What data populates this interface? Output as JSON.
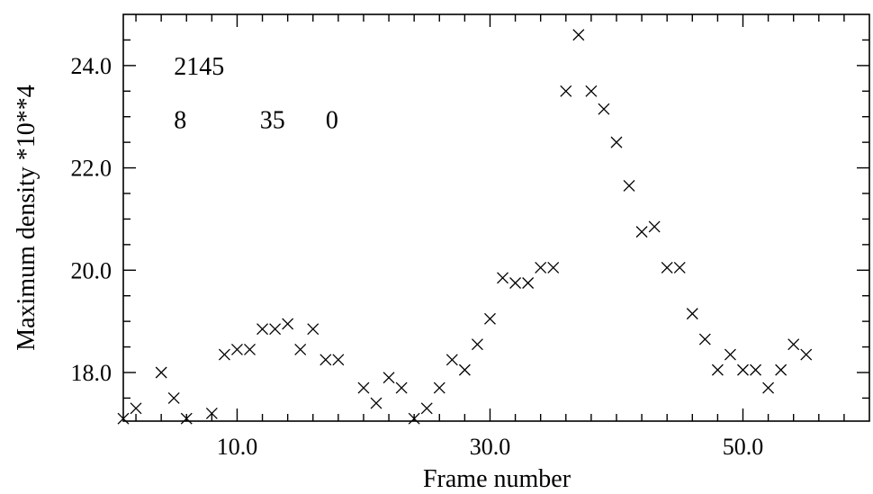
{
  "chart_data": {
    "type": "scatter",
    "title": "",
    "xlabel": "Frame number",
    "ylabel": "Maximum density *10**4",
    "xlim": [
      1,
      60
    ],
    "ylim": [
      17.05,
      25.0
    ],
    "x_ticks": [
      {
        "value": 10,
        "label": "10.0"
      },
      {
        "value": 30,
        "label": "30.0"
      },
      {
        "value": 50,
        "label": "50.0"
      }
    ],
    "y_ticks": [
      {
        "value": 18,
        "label": "18.0"
      },
      {
        "value": 20,
        "label": "20.0"
      },
      {
        "value": 22,
        "label": "22.0"
      },
      {
        "value": 24,
        "label": "24.0"
      }
    ],
    "marker": "x",
    "grid": false,
    "annotations": [
      {
        "text": "2145",
        "x": 5,
        "y": 24.0
      },
      {
        "text": "8",
        "x": 5,
        "y": 22.95
      },
      {
        "text": "35",
        "x": 11.8,
        "y": 22.95
      },
      {
        "text": "0",
        "x": 17,
        "y": 22.95
      }
    ],
    "series": [
      {
        "x": [
          1,
          2,
          4,
          5,
          6,
          8,
          9,
          10,
          11,
          12,
          13,
          14,
          15,
          16,
          17,
          18,
          20,
          21,
          22,
          23,
          24,
          25,
          26,
          27,
          28,
          29,
          30,
          31,
          32,
          33,
          34,
          35,
          36,
          37,
          38,
          39,
          40,
          41,
          42,
          43,
          44,
          45,
          46,
          47,
          48,
          49,
          50,
          51,
          52,
          53,
          54,
          55
        ],
        "y": [
          17.1,
          17.3,
          18.0,
          17.5,
          17.1,
          17.2,
          18.35,
          18.45,
          18.45,
          18.85,
          18.85,
          18.95,
          18.45,
          18.85,
          18.25,
          18.25,
          17.7,
          17.4,
          17.9,
          17.7,
          17.1,
          17.3,
          17.7,
          18.25,
          18.05,
          18.55,
          19.05,
          19.85,
          19.75,
          19.75,
          20.05,
          20.05,
          23.5,
          24.6,
          23.5,
          23.15,
          22.5,
          21.65,
          20.75,
          20.85,
          20.05,
          20.05,
          19.15,
          18.65,
          18.05,
          18.35,
          18.05,
          18.05,
          17.7,
          18.05,
          18.55,
          18.35
        ]
      }
    ]
  }
}
